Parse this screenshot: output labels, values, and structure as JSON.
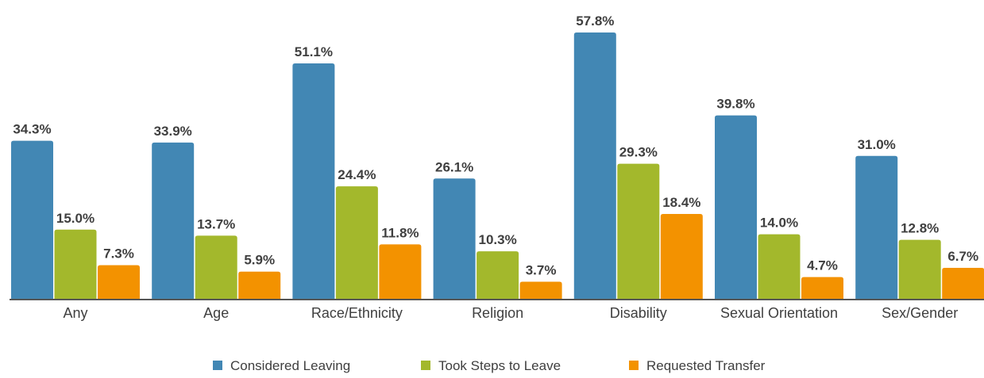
{
  "chart_data": {
    "type": "bar",
    "categories": [
      "Any",
      "Age",
      "Race/Ethnicity",
      "Religion",
      "Disability",
      "Sexual Orientation",
      "Sex/Gender"
    ],
    "series": [
      {
        "name": "Considered Leaving",
        "color": "#4287b4",
        "values": [
          34.3,
          33.9,
          51.1,
          26.1,
          57.8,
          39.8,
          31.0
        ]
      },
      {
        "name": "Took Steps to Leave",
        "color": "#a3b82c",
        "values": [
          15.0,
          13.7,
          24.4,
          10.3,
          29.3,
          14.0,
          12.8
        ]
      },
      {
        "name": "Requested Transfer",
        "color": "#f39200",
        "values": [
          7.3,
          5.9,
          11.8,
          3.7,
          18.4,
          4.7,
          6.7
        ]
      }
    ],
    "value_suffix": "%",
    "ylim": [
      0,
      60
    ],
    "grid": false,
    "legend_position": "bottom-center",
    "axis_color": "#555555",
    "text_color": "#3f3f3f"
  }
}
